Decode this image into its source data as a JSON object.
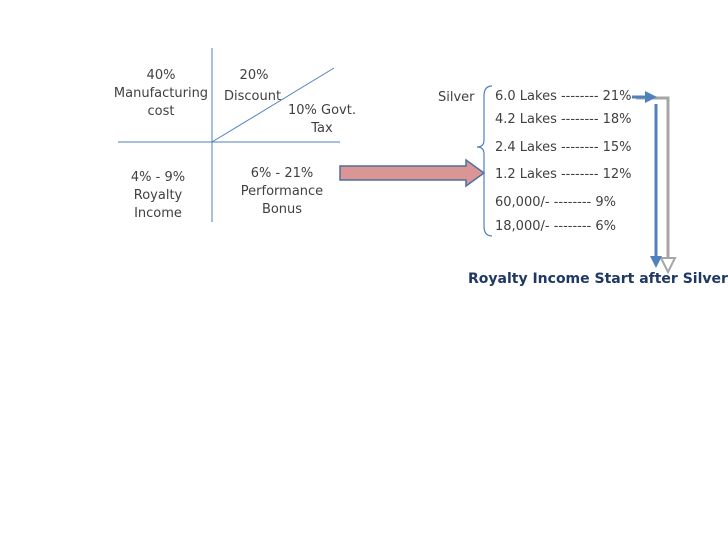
{
  "quadrants": {
    "manufacturing": {
      "pct": "40%",
      "line1": "Manufacturing",
      "line2": "cost"
    },
    "discount": {
      "pct": "20%",
      "label": "Discount"
    },
    "tax": {
      "line1": "10% Govt.",
      "line2": "Tax"
    },
    "royalty": {
      "range": "4% - 9%",
      "line1": "Royalty",
      "line2": "Income"
    },
    "bonus": {
      "range": "6% - 21%",
      "line1": "Performance",
      "line2": "Bonus"
    }
  },
  "silver_label": "Silver",
  "levels": [
    "6.0 Lakes -------- 21%",
    "4.2 Lakes -------- 18%",
    "2.4 Lakes -------- 15%",
    "1.2 Lakes -------- 12%",
    "60,000/-  -------- 9%",
    "18,000/-  -------- 6%"
  ],
  "footer": "Royalty Income Start after Silver",
  "colors": {
    "line": "#4f81bd",
    "arrow_fill": "#d99694",
    "arrow_stroke": "#4f6f9f",
    "gray": "#a6a6a6"
  }
}
